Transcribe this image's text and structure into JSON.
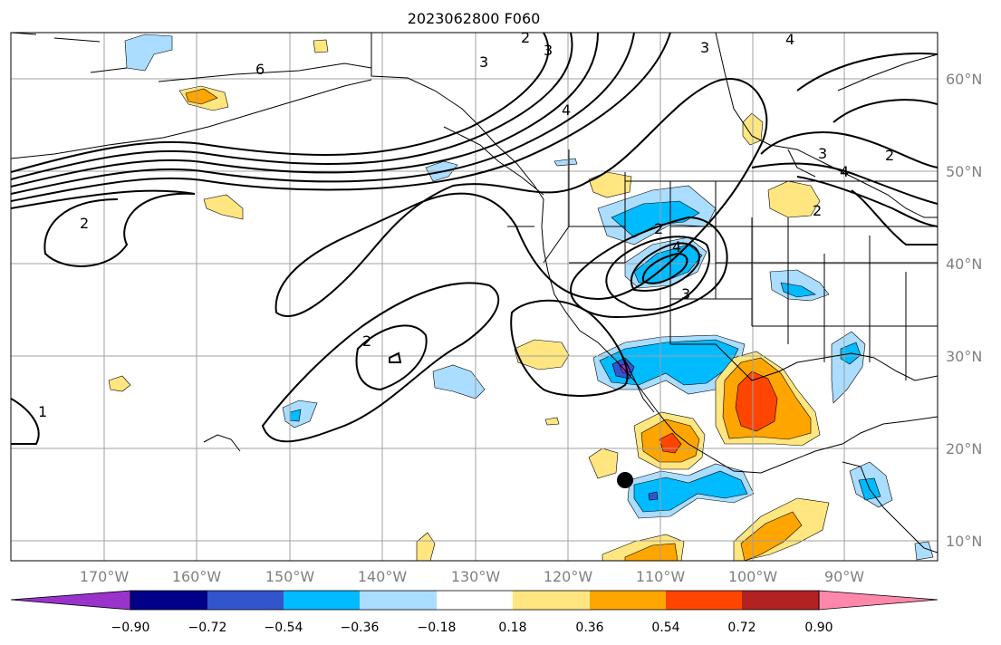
{
  "title": "2023062800 F060",
  "map": {
    "lon_ticks": [
      "170°W",
      "160°W",
      "150°W",
      "140°W",
      "130°W",
      "120°W",
      "110°W",
      "100°W",
      "90°W"
    ],
    "lat_ticks": [
      "60°N",
      "50°N",
      "40°N",
      "30°N",
      "20°N",
      "10°N"
    ],
    "contour_labels": [
      "2",
      "3",
      "3",
      "4",
      "6",
      "4",
      "3",
      "2",
      "2",
      "4",
      "3",
      "2",
      "4",
      "3",
      "2",
      "2",
      "1"
    ],
    "colors": {
      "grid": "#a0a0a0",
      "contour": "#000000",
      "coast": "#000000"
    }
  },
  "colorbar": {
    "ticks": [
      "−0.90",
      "−0.72",
      "−0.54",
      "−0.36",
      "−0.18",
      "0.18",
      "0.36",
      "0.54",
      "0.72",
      "0.90"
    ],
    "colors": [
      "#9933cc",
      "#000088",
      "#3355cc",
      "#00bbff",
      "#aaddff",
      "#ffffff",
      "#ffe680",
      "#ffa500",
      "#ff4500",
      "#b22222",
      "#ff88aa"
    ]
  }
}
